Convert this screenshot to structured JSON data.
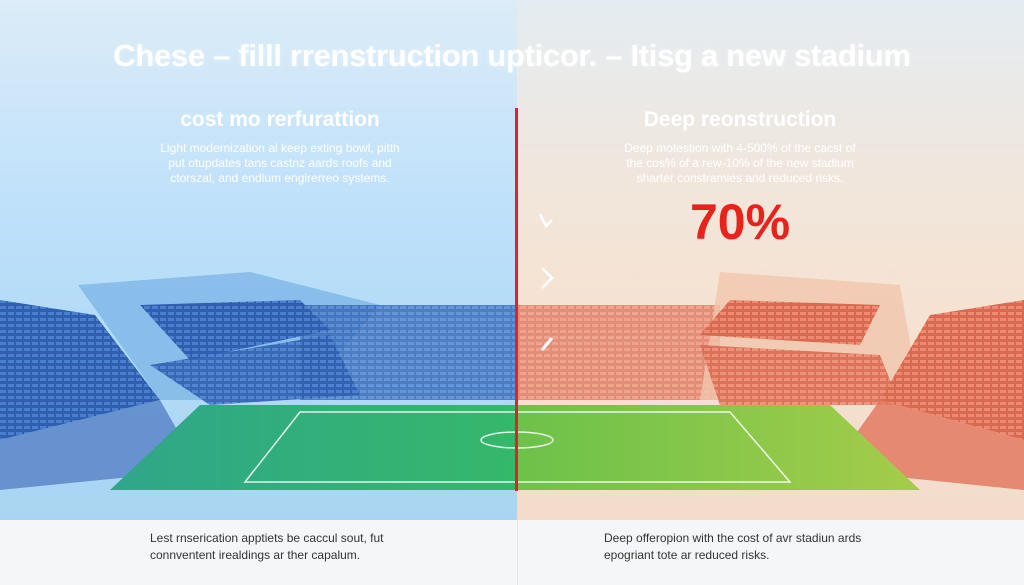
{
  "title": "Chese – filll rrenstruction upticor. – Itisg a new stadium",
  "left_panel": {
    "heading": "cost mo rerfurattion",
    "description": [
      "Light modernization al keep exting bowl, pitth",
      "put otupdates tans castnz aards roofs and",
      "ctorszal, and endlum engirerreo systems."
    ],
    "caption": [
      "Lest rnserication apptiets be caccul sout, fut",
      "connventent irealdings ar ther capalum."
    ],
    "color": "#3a7fd0"
  },
  "right_panel": {
    "heading": "Deep reonstruction",
    "description": [
      "Deep motestion with 4-500% of the cacst of",
      "the cos% of a rew-10% of the new stadium",
      "sharter constramies and reduced risks."
    ],
    "highlight": "70%",
    "caption": [
      "Deep offeropion with the cost of avr stadiun ards",
      "epogriant tote ar reduced risks."
    ],
    "color": "#e8604a",
    "highlight_color": "#e8231c"
  },
  "icons": [
    "chevron-down-right-icon",
    "chevron-right-icon",
    "chevron-up-right-icon"
  ],
  "divider_color": "#d9262a"
}
